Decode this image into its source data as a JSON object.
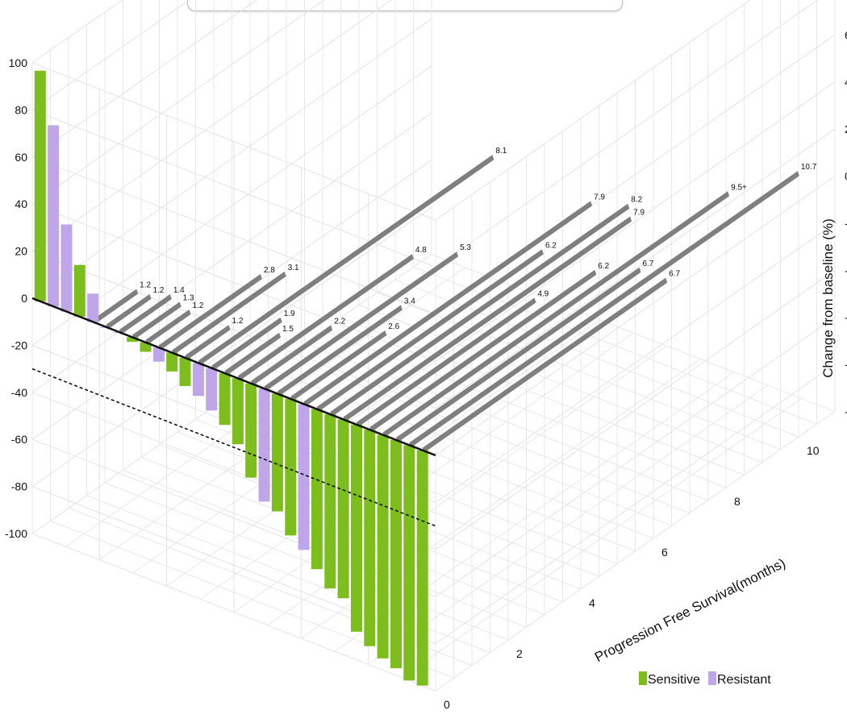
{
  "chart_data": {
    "type": "bar",
    "projection": "3d",
    "yaxis_right_label": "Change from baseline (%)",
    "pfs_axis_label": "Progression Free Survival(months)",
    "y_ticks": [
      "100",
      "80",
      "60",
      "40",
      "20",
      "0",
      "-20",
      "-40",
      "-60",
      "-80",
      "-100"
    ],
    "pfs_ticks": [
      "0",
      "2",
      "4",
      "6",
      "8",
      "10"
    ],
    "ylim": [
      -100,
      100
    ],
    "pfs_lim": [
      0,
      11
    ],
    "grid": true,
    "threshold_line": -30,
    "legend": {
      "position": "bottom-right",
      "items": [
        {
          "name": "Sensitive",
          "color": "#7dbe1e"
        },
        {
          "name": "Resistant",
          "color": "#bfa6e8"
        }
      ]
    },
    "colors": {
      "pfs_bar": "#7f7f7f",
      "sensitive": "#7dbe1e",
      "resistant": "#bfa6e8"
    },
    "patients": [
      {
        "change": 98,
        "group": "Sensitive"
      },
      {
        "change": 77,
        "group": "Resistant"
      },
      {
        "change": 37,
        "group": "Resistant"
      },
      {
        "change": 22,
        "group": "Sensitive"
      },
      {
        "change": 12,
        "group": "Resistant",
        "pfs": 1.2,
        "pfs_label": "1.2"
      },
      {
        "change": 0,
        "group": "Resistant",
        "pfs": 1.2,
        "pfs_label": "1.2"
      },
      {
        "change": 0,
        "group": "Resistant",
        "pfs": 1.4,
        "pfs_label": "1.4"
      },
      {
        "change": -2,
        "group": "Sensitive",
        "pfs": 1.3,
        "pfs_label": "1.3"
      },
      {
        "change": -4,
        "group": "Sensitive",
        "pfs": 1.2,
        "pfs_label": "1.2"
      },
      {
        "change": -6,
        "group": "Resistant",
        "pfs": 2.8,
        "pfs_label": "2.8"
      },
      {
        "change": -8,
        "group": "Sensitive",
        "pfs": 3.1,
        "pfs_label": "3.1"
      },
      {
        "change": -12,
        "group": "Sensitive",
        "pfs": 1.2,
        "pfs_label": "1.2"
      },
      {
        "change": -14,
        "group": "Resistant",
        "pfs": 8.1,
        "pfs_label": "8.1"
      },
      {
        "change": -18,
        "group": "Resistant",
        "pfs": 1.9,
        "pfs_label": "1.9"
      },
      {
        "change": -22,
        "group": "Sensitive",
        "pfs": 1.5,
        "pfs_label": "1.5"
      },
      {
        "change": -28,
        "group": "Sensitive",
        "pfs": 4.8,
        "pfs_label": "4.8"
      },
      {
        "change": -40,
        "group": "Sensitive",
        "pfs": 2.2,
        "pfs_label": "2.2"
      },
      {
        "change": -48,
        "group": "Resistant",
        "pfs": 5.3,
        "pfs_label": "5.3"
      },
      {
        "change": -50,
        "group": "Sensitive",
        "pfs": 3.4,
        "pfs_label": "3.4"
      },
      {
        "change": -58,
        "group": "Sensitive",
        "pfs": 2.6,
        "pfs_label": "2.6"
      },
      {
        "change": -62,
        "group": "Resistant",
        "pfs": 7.9,
        "pfs_label": "7.9"
      },
      {
        "change": -68,
        "group": "Sensitive",
        "pfs": 6.2,
        "pfs_label": "6.2"
      },
      {
        "change": -74,
        "group": "Sensitive",
        "pfs": 8.2,
        "pfs_label": "8.2"
      },
      {
        "change": -76,
        "group": "Sensitive",
        "pfs": 7.9,
        "pfs_label": "7.9"
      },
      {
        "change": -88,
        "group": "Sensitive",
        "pfs": 4.9,
        "pfs_label": "4.9"
      },
      {
        "change": -92,
        "group": "Sensitive",
        "pfs": 6.2,
        "pfs_label": "6.2"
      },
      {
        "change": -95,
        "group": "Sensitive",
        "pfs": 9.5,
        "pfs_label": "9.5+"
      },
      {
        "change": -97,
        "group": "Sensitive",
        "pfs": 6.7,
        "pfs_label": "6.7"
      },
      {
        "change": -100,
        "group": "Sensitive",
        "pfs": 10.7,
        "pfs_label": "10.7"
      },
      {
        "change": -100,
        "group": "Sensitive",
        "pfs": 6.7,
        "pfs_label": "6.7"
      }
    ]
  }
}
